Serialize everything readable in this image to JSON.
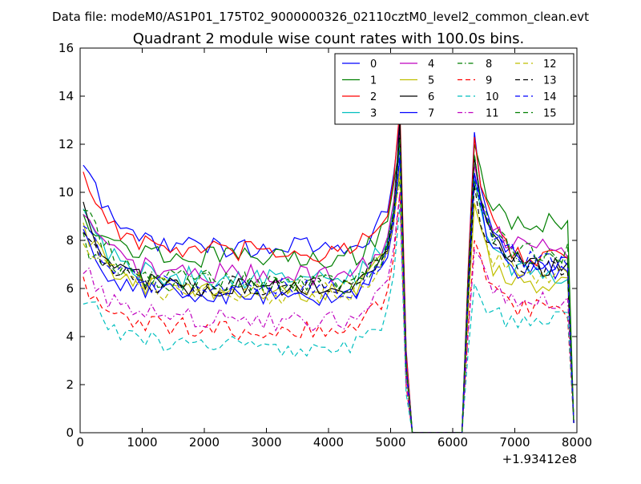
{
  "figure": {
    "suptitle": "Data file: modeM0/AS1P01_175T02_9000000326_02110cztM0_level2_common_clean.evt",
    "offset_label": "+1.93412e8"
  },
  "colors": {
    "blue": "#0000ff",
    "green": "#007f00",
    "red": "#ff0000",
    "cyan": "#00bfbf",
    "magenta": "#bf00bf",
    "yellow": "#bfbf00",
    "black": "#000000"
  },
  "chart_data": {
    "type": "line",
    "title": "Quadrant 2 module wise count rates with 100.0s bins.",
    "xlabel": "",
    "ylabel": "",
    "xlim": [
      0,
      8000
    ],
    "ylim": [
      0,
      16
    ],
    "x_ticks": [
      "0",
      "1000",
      "2000",
      "3000",
      "4000",
      "5000",
      "6000",
      "7000",
      "8000"
    ],
    "y_ticks": [
      "0",
      "2",
      "4",
      "6",
      "8",
      "10",
      "12",
      "14",
      "16"
    ],
    "x_offset": "+1.93412e8",
    "legend_position": "top-right",
    "grid": false,
    "saa_gap": [
      5350,
      6150
    ],
    "peak_1": 5150,
    "peak_2": 6350,
    "series": [
      {
        "name": "0",
        "color": "#0000ff",
        "dash": "solid",
        "start": 11.3,
        "level": 7.7,
        "end": 6.2,
        "peak1": 13.0,
        "peak2": 12.5
      },
      {
        "name": "1",
        "color": "#007f00",
        "dash": "solid",
        "start": 9.2,
        "level": 7.3,
        "end": 7.9,
        "peak1": 12.0,
        "peak2": 12.0
      },
      {
        "name": "2",
        "color": "#ff0000",
        "dash": "solid",
        "start": 10.9,
        "level": 7.5,
        "end": 6.5,
        "peak1": 13.5,
        "peak2": 12.3
      },
      {
        "name": "3",
        "color": "#00bfbf",
        "dash": "solid",
        "start": 9.3,
        "level": 6.4,
        "end": 5.8,
        "peak1": 12.0,
        "peak2": 10.5
      },
      {
        "name": "4",
        "color": "#bf00bf",
        "dash": "solid",
        "start": 9.0,
        "level": 6.6,
        "end": 6.9,
        "peak1": 12.5,
        "peak2": 11.2
      },
      {
        "name": "5",
        "color": "#bfbf00",
        "dash": "solid",
        "start": 8.6,
        "level": 5.9,
        "end": 5.3,
        "peak1": 11.0,
        "peak2": 9.5
      },
      {
        "name": "6",
        "color": "#000000",
        "dash": "solid",
        "start": 9.4,
        "level": 6.0,
        "end": 6.1,
        "peak1": 13.0,
        "peak2": 11.5
      },
      {
        "name": "7",
        "color": "#0000ff",
        "dash": "solid",
        "start": 8.2,
        "level": 5.7,
        "end": 5.9,
        "peak1": 11.5,
        "peak2": 10.8
      },
      {
        "name": "8",
        "color": "#007f00",
        "dash": "dashdot",
        "start": 8.0,
        "level": 6.2,
        "end": 6.6,
        "peak1": 10.5,
        "peak2": 10.5
      },
      {
        "name": "9",
        "color": "#ff0000",
        "dash": "dashed",
        "start": 6.1,
        "level": 4.3,
        "end": 4.3,
        "peak1": 10.0,
        "peak2": 8.0
      },
      {
        "name": "10",
        "color": "#00bfbf",
        "dash": "dashed",
        "start": 5.8,
        "level": 3.6,
        "end": 3.8,
        "peak1": 9.5,
        "peak2": 6.2
      },
      {
        "name": "11",
        "color": "#bf00bf",
        "dash": "dashdot",
        "start": 7.0,
        "level": 4.7,
        "end": 4.6,
        "peak1": 10.0,
        "peak2": 7.6
      },
      {
        "name": "12",
        "color": "#bfbf00",
        "dash": "dashed",
        "start": 8.2,
        "level": 5.8,
        "end": 5.8,
        "peak1": 10.8,
        "peak2": 9.6
      },
      {
        "name": "13",
        "color": "#000000",
        "dash": "dashed",
        "start": 8.6,
        "level": 6.1,
        "end": 6.0,
        "peak1": 12.5,
        "peak2": 10.3
      },
      {
        "name": "14",
        "color": "#0000ff",
        "dash": "dashed",
        "start": 8.8,
        "level": 6.0,
        "end": 6.4,
        "peak1": 11.8,
        "peak2": 10.7
      },
      {
        "name": "15",
        "color": "#007f00",
        "dash": "dashed",
        "start": 9.4,
        "level": 6.3,
        "end": 6.6,
        "peak1": 12.2,
        "peak2": 11.6
      }
    ]
  }
}
